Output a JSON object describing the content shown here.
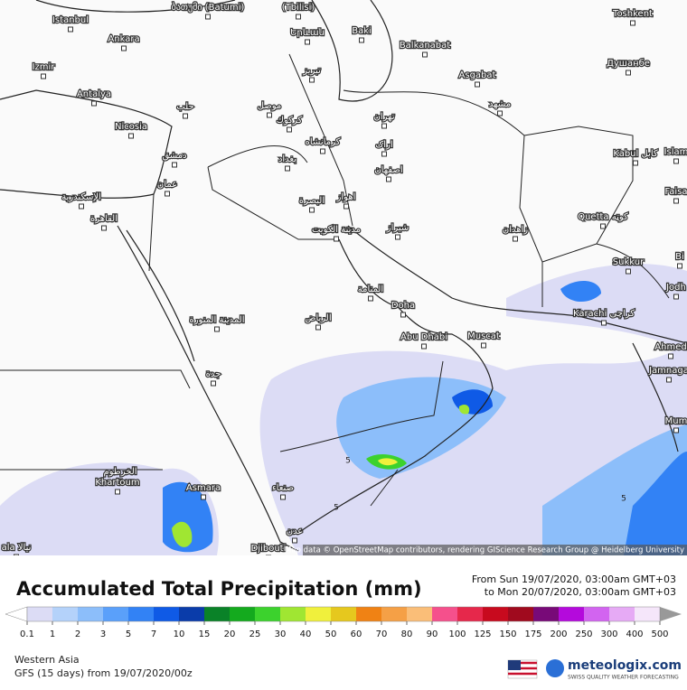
{
  "map": {
    "labels": [
      "ბათუმი (Batumi)",
      "(Tbilisi)",
      "Istanbul",
      "Երևան",
      "Baki",
      "Balkanabat",
      "Toshkent",
      "Ankara",
      "Izmir",
      "Asgabat",
      "Душанбе",
      "تبریز",
      "Antalya",
      "حلب",
      "موصل",
      "تهران",
      "مشهد",
      "Nicosia",
      "كركوك",
      "دمشق",
      "كرمانشاه",
      "اراک",
      "Kabul كابل",
      "بغداد",
      "اصفهان",
      "Islam",
      "عمان",
      "الإسكندرية",
      "القاهرة",
      "البصرة",
      "اهواز",
      "Faisa",
      "Quetta كوټه",
      "مدينة الكويت",
      "شیراز",
      "زاهدان",
      "Sukkur",
      "المنامة",
      "Doha",
      "Karachi كراچی",
      "المدينة المنورة",
      "الرياض",
      "Abu Dhabi",
      "Muscat",
      "Ahmed",
      "Jamnaga",
      "جدة",
      "Mum",
      "الخرطوم",
      "Khartoum",
      "Asmara",
      "صنعاء",
      "عدن",
      "Djibouti",
      "ala نيالا",
      "Jodh",
      "Bi"
    ],
    "contour_labels": [
      "5",
      "5",
      "5"
    ],
    "attribution": "Map data © OpenStreetMap contributors, rendering GIScience Research Group @ Heidelberg University"
  },
  "legend": {
    "title": "Accumulated Total Precipitation (mm)",
    "from": "From Sun 19/07/2020, 03:00am GMT+03",
    "to": "to Mon 20/07/2020, 03:00am GMT+03",
    "scale": [
      0.1,
      1,
      2,
      3,
      5,
      7,
      10,
      15,
      20,
      25,
      30,
      40,
      50,
      60,
      70,
      80,
      90,
      100,
      125,
      150,
      175,
      200,
      250,
      300,
      400,
      500
    ],
    "colors": [
      "#dcdcf5",
      "#b4d2fa",
      "#8cbefa",
      "#5aa0fa",
      "#3282f5",
      "#0f5ae6",
      "#0a3caa",
      "#0a8228",
      "#14aa1e",
      "#3cd22d",
      "#a0e632",
      "#f0f03c",
      "#e6c81e",
      "#f08214",
      "#f5a046",
      "#fabe78",
      "#f5508c",
      "#e6284b",
      "#c80a1e",
      "#a00a1e",
      "#780a78",
      "#b40adc",
      "#d264f0",
      "#e6aaf5",
      "#f5e6fa"
    ],
    "low_color": "#ffffff",
    "high_color": "#999999"
  },
  "footer": {
    "region": "Western Asia",
    "model": "GFS (15 days) from 19/07/2020/00z",
    "brand": "meteologix.com",
    "tagline": "SWISS QUALITY WEATHER FORECASTING"
  }
}
